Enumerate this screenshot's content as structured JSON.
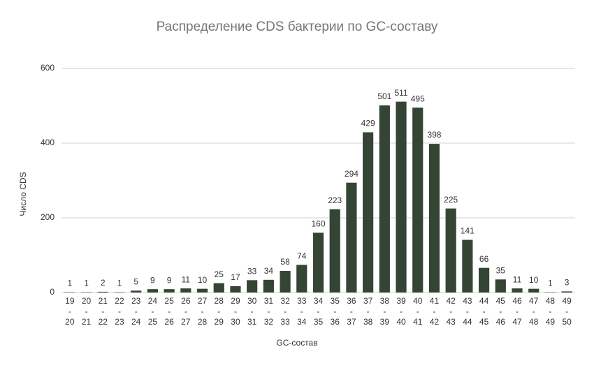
{
  "chart_data": {
    "type": "bar",
    "title": "Распределение CDS бактерии по GC-составу",
    "x_label": "GC-состав",
    "y_label": "Число CDS",
    "categories": [
      "19-20",
      "20-21",
      "21-22",
      "22-23",
      "23-24",
      "24-25",
      "25-26",
      "26-27",
      "27-28",
      "28-29",
      "29-30",
      "30-31",
      "31-32",
      "32-33",
      "33-34",
      "34-35",
      "35-36",
      "36-37",
      "37-38",
      "38-39",
      "39-40",
      "40-41",
      "41-42",
      "42-43",
      "43-44",
      "44-45",
      "45-46",
      "46-47",
      "47-48",
      "48-49",
      "49-50"
    ],
    "values": [
      1,
      1,
      2,
      1,
      5,
      9,
      9,
      11,
      10,
      25,
      17,
      33,
      34,
      58,
      74,
      160,
      223,
      294,
      429,
      501,
      511,
      495,
      398,
      225,
      141,
      66,
      35,
      11,
      10,
      1,
      3
    ],
    "color": "#344534",
    "ylim": [
      0,
      600
    ],
    "yticks": [
      0,
      200,
      400,
      600
    ],
    "grid": true
  }
}
